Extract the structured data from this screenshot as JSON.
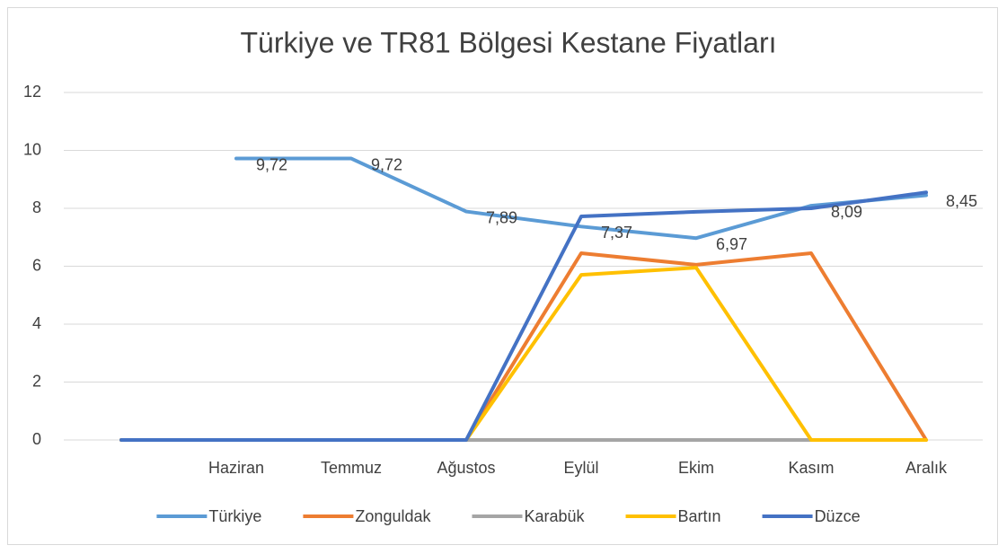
{
  "chart_data": {
    "type": "line",
    "title": "Türkiye ve TR81 Bölgesi Kestane Fiyatları",
    "categories": [
      null,
      "Haziran",
      "Temmuz",
      "Ağustos",
      "Eylül",
      "Ekim",
      "Kasım",
      "Aralık"
    ],
    "series": [
      {
        "name": "Türkiye",
        "color": "#5b9bd5",
        "values": [
          null,
          9.72,
          9.72,
          7.89,
          7.37,
          6.97,
          8.09,
          8.45
        ],
        "value_labels": [
          null,
          "9,72",
          "9,72",
          "7,89",
          "7,37",
          "6,97",
          "8,09",
          "8,45"
        ]
      },
      {
        "name": "Zonguldak",
        "color": "#ed7d31",
        "values": [
          0,
          0,
          0,
          0,
          6.45,
          6.05,
          6.45,
          0
        ]
      },
      {
        "name": "Karabük",
        "color": "#a5a5a5",
        "values": [
          0,
          0,
          0,
          0,
          0,
          0,
          0,
          null
        ]
      },
      {
        "name": "Bartın",
        "color": "#ffc000",
        "values": [
          0,
          0,
          0,
          0,
          5.7,
          5.95,
          0,
          0
        ]
      },
      {
        "name": "Düzce",
        "color": "#4472c4",
        "values": [
          0,
          0,
          0,
          0,
          7.72,
          7.88,
          8.0,
          8.55
        ]
      }
    ],
    "ylim": [
      0,
      12
    ],
    "yticks": [
      0,
      2,
      4,
      6,
      8,
      10,
      12
    ],
    "grid": true,
    "legend": "bottom"
  }
}
